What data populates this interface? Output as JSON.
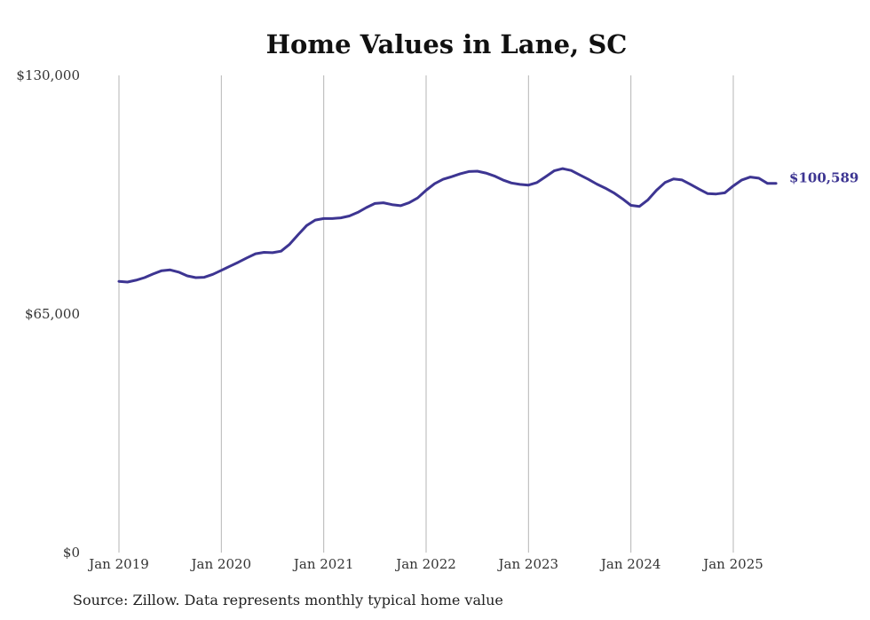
{
  "source_note": "Source: Zillow. Data represents monthly typical home value",
  "colors": {
    "line": "#3d3592",
    "grid": "#b5b5b5",
    "text": "#333333",
    "title": "#111111"
  },
  "chart_data": {
    "type": "line",
    "title": "Home Values in Lane, SC",
    "xlabel": "",
    "ylabel": "",
    "ylim": [
      0,
      130000
    ],
    "yticks": [
      0,
      65000,
      130000
    ],
    "ytick_labels": [
      "$0",
      "$65,000",
      "$130,000"
    ],
    "xticks": [
      "2019-01",
      "2020-01",
      "2021-01",
      "2022-01",
      "2023-01",
      "2024-01",
      "2025-01"
    ],
    "xtick_labels": [
      "Jan 2019",
      "Jan 2020",
      "Jan 2021",
      "Jan 2022",
      "Jan 2023",
      "Jan 2024",
      "Jan 2025"
    ],
    "grid": "vertical",
    "end_label": "$100,589",
    "series": [
      {
        "x": [
          "2019-01",
          "2019-02",
          "2019-03",
          "2019-04",
          "2019-05",
          "2019-06",
          "2019-07",
          "2019-08",
          "2019-09",
          "2019-10",
          "2019-11",
          "2019-12",
          "2020-01",
          "2020-02",
          "2020-03",
          "2020-04",
          "2020-05",
          "2020-06",
          "2020-07",
          "2020-08",
          "2020-09",
          "2020-10",
          "2020-11",
          "2020-12",
          "2021-01",
          "2021-02",
          "2021-03",
          "2021-04",
          "2021-05",
          "2021-06",
          "2021-07",
          "2021-08",
          "2021-09",
          "2021-10",
          "2021-11",
          "2021-12",
          "2022-01",
          "2022-02",
          "2022-03",
          "2022-04",
          "2022-05",
          "2022-06",
          "2022-07",
          "2022-08",
          "2022-09",
          "2022-10",
          "2022-11",
          "2022-12",
          "2023-01",
          "2023-02",
          "2023-03",
          "2023-04",
          "2023-05",
          "2023-06",
          "2023-07",
          "2023-08",
          "2023-09",
          "2023-10",
          "2023-11",
          "2023-12",
          "2024-01",
          "2024-02",
          "2024-03",
          "2024-04",
          "2024-05",
          "2024-06",
          "2024-07",
          "2024-08",
          "2024-09",
          "2024-10",
          "2024-11",
          "2024-12",
          "2025-01",
          "2025-02",
          "2025-03",
          "2025-04",
          "2025-05",
          "2025-06"
        ],
        "values": [
          73900,
          73700,
          74200,
          74900,
          75900,
          76800,
          77000,
          76400,
          75400,
          74900,
          75000,
          75800,
          76900,
          78000,
          79100,
          80300,
          81400,
          81800,
          81700,
          82100,
          84000,
          86600,
          89100,
          90600,
          91000,
          91000,
          91200,
          91700,
          92700,
          94000,
          95100,
          95300,
          94800,
          94500,
          95300,
          96600,
          98700,
          100500,
          101700,
          102400,
          103200,
          103800,
          103900,
          103400,
          102600,
          101500,
          100700,
          100300,
          100100,
          100800,
          102400,
          104000,
          104600,
          104100,
          102900,
          101700,
          100400,
          99300,
          98000,
          96400,
          94600,
          94300,
          96100,
          98700,
          100800,
          101800,
          101500,
          100300,
          99000,
          97800,
          97700,
          98000,
          99900,
          101500,
          102300,
          102000,
          100600,
          100589
        ]
      }
    ]
  }
}
